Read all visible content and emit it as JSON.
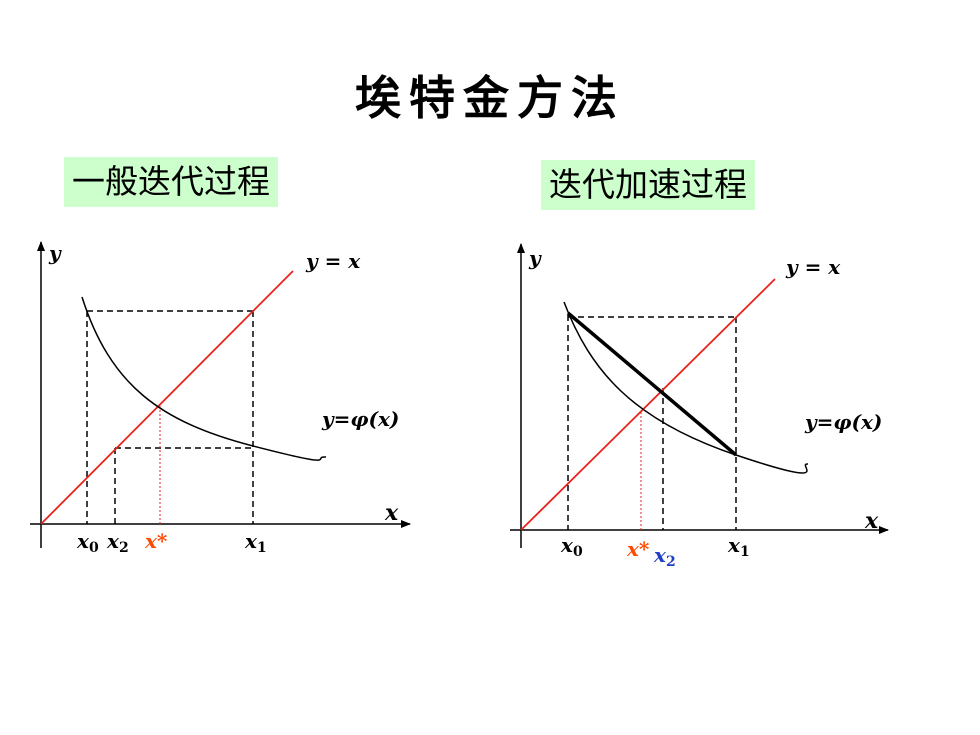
{
  "title": "埃特金方法",
  "left": {
    "heading": "一般迭代过程",
    "y_axis": "y",
    "x_axis": "x",
    "line_label": "y = x",
    "curve_label": "y=φ(x)",
    "x0": "x",
    "x0_sub": "0",
    "x2": "x",
    "x2_sub": "2",
    "xstar": "x*",
    "x1": "x",
    "x1_sub": "1"
  },
  "right": {
    "heading": "迭代加速过程",
    "y_axis": "y",
    "x_axis": "x",
    "line_label": "y = x",
    "curve_label": "y=φ(x)",
    "x0": "x",
    "x0_sub": "0",
    "xstar": "x*",
    "x2": "x",
    "x2_sub": "2",
    "x1": "x",
    "x1_sub": "1"
  },
  "colors": {
    "identity_line": "#e8231b",
    "xstar_label": "#ff4a00",
    "x2_accel_label": "#1f3fc8",
    "box_bg": "#ccffcc"
  }
}
